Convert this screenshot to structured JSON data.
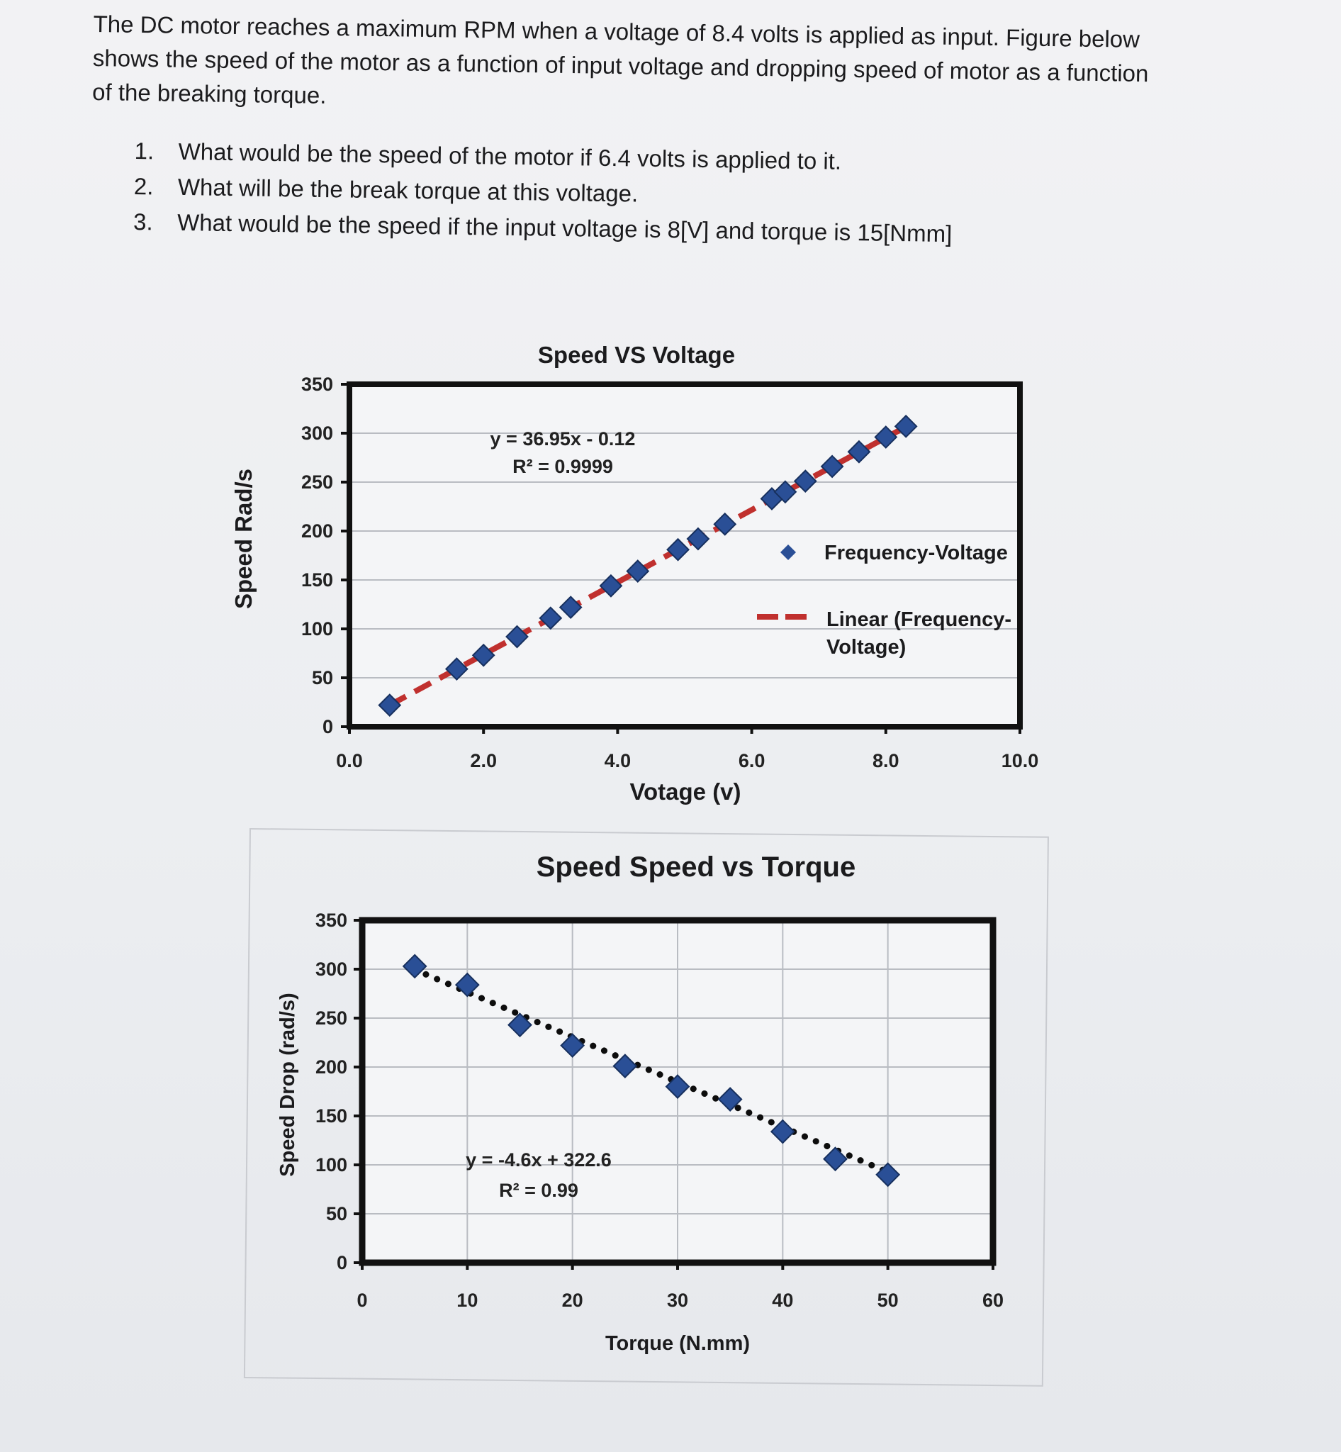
{
  "intro_text": "The DC motor reaches a maximum RPM when a voltage of 8.4 volts is applied as input. Figure below shows the speed of the motor as a function of input voltage and dropping speed of motor as a function of the breaking torque.",
  "questions": [
    {
      "num": "1.",
      "text": "What would be the speed of the motor if 6.4 volts is applied to it."
    },
    {
      "num": "2.",
      "text": "What will be the break torque at this voltage."
    },
    {
      "num": "3.",
      "text": "What would be the speed if the input voltage is 8[V] and torque is 15[Nmm]"
    }
  ],
  "colors": {
    "marker": "#2a4f96",
    "marker_edge": "#17305e",
    "trend_red": "#c0302e",
    "trend_dot": "#0d0d0d"
  },
  "chart_data": [
    {
      "type": "scatter",
      "title": "Speed VS Voltage",
      "xlabel": "Votage (v)",
      "ylabel": "Speed Rad/s",
      "xlim": [
        0,
        10
      ],
      "ylim": [
        0,
        350
      ],
      "x_ticks": [
        "0.0",
        "2.0",
        "4.0",
        "6.0",
        "8.0",
        "10.0"
      ],
      "y_ticks": [
        "0",
        "50",
        "100",
        "150",
        "200",
        "250",
        "300",
        "350"
      ],
      "grid": "horizontal",
      "legend_position": "right",
      "series": [
        {
          "name": "Frequency-Voltage",
          "marker": "diamond",
          "x": [
            0.6,
            1.6,
            2.0,
            2.5,
            3.0,
            3.3,
            3.9,
            4.3,
            4.9,
            5.2,
            5.6,
            6.3,
            6.5,
            6.8,
            7.2,
            7.6,
            8.0,
            8.3
          ],
          "y": [
            22,
            59,
            73,
            92,
            111,
            122,
            144,
            159,
            181,
            192,
            207,
            233,
            240,
            251,
            266,
            281,
            296,
            307
          ]
        },
        {
          "name": "Linear (Frequency-Voltage)",
          "style": "dashed",
          "slope": 36.95,
          "intercept": -0.12,
          "x_range": [
            0.6,
            8.4
          ]
        }
      ],
      "annotation": {
        "equation": "y = 36.95x - 0.12",
        "r2": "R² = 0.9999"
      }
    },
    {
      "type": "scatter",
      "title": "Speed Speed vs Torque",
      "xlabel": "Torque (N.mm)",
      "ylabel": "Speed Drop (rad/s)",
      "xlim": [
        0,
        60
      ],
      "ylim": [
        0,
        350
      ],
      "x_ticks": [
        "0",
        "10",
        "20",
        "30",
        "40",
        "50",
        "60"
      ],
      "y_ticks": [
        "0",
        "50",
        "100",
        "150",
        "200",
        "250",
        "300",
        "350"
      ],
      "grid": "both",
      "series": [
        {
          "name": "",
          "marker": "diamond",
          "x": [
            5,
            10,
            15,
            20,
            25,
            30,
            35,
            40,
            45,
            50
          ],
          "y": [
            303,
            284,
            243,
            222,
            201,
            180,
            167,
            134,
            106,
            90
          ]
        },
        {
          "name": "",
          "style": "dotted",
          "slope": -4.6,
          "intercept": 322.6,
          "x_range": [
            5,
            50
          ]
        }
      ],
      "annotation": {
        "equation": "y = -4.6x + 322.6",
        "r2": "R² = 0.99"
      }
    }
  ]
}
